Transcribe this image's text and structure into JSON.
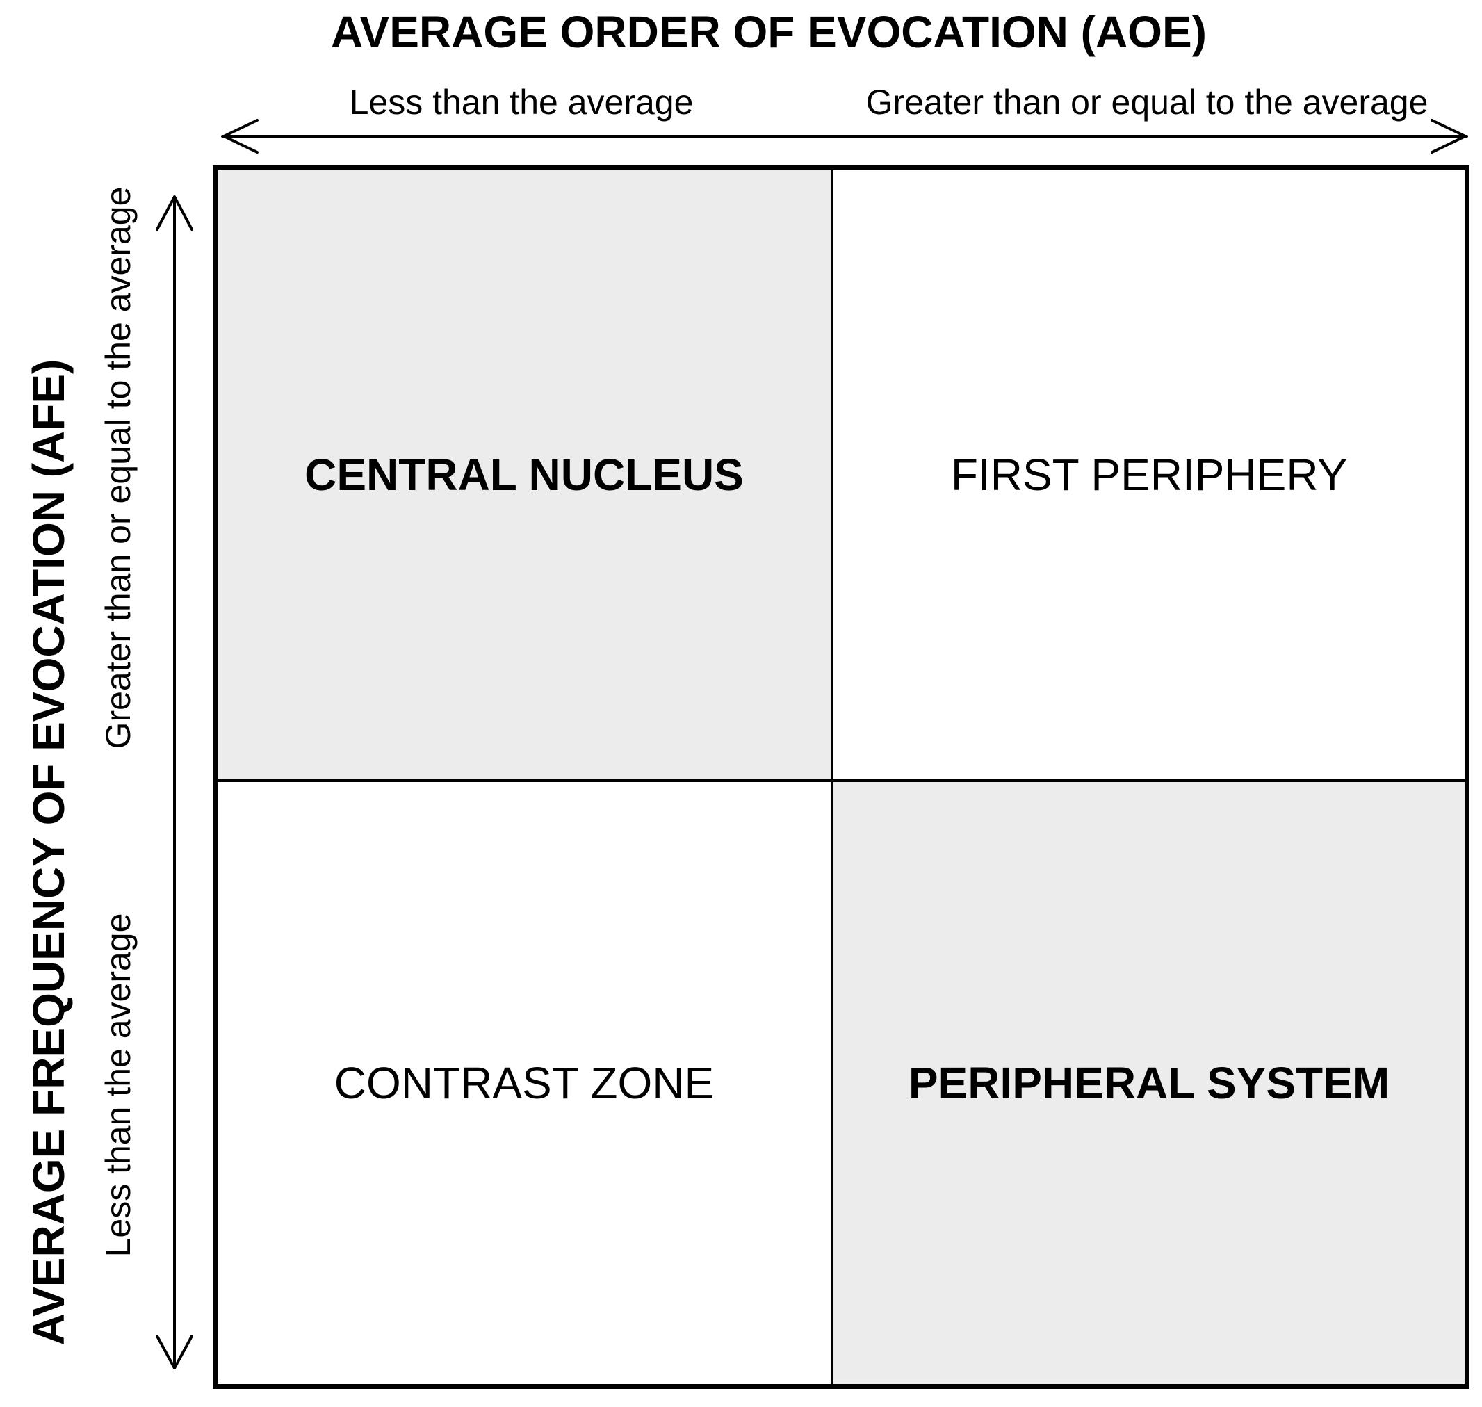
{
  "x_axis": {
    "title": "AVERAGE ORDER OF EVOCATION (AOE)",
    "low_label": "Less than the average",
    "high_label": "Greater than or equal to the average"
  },
  "y_axis": {
    "title": "AVERAGE FREQUENCY OF EVOCATION (AFE)",
    "high_label": "Greater than or equal to the average",
    "low_label": "Less than the average"
  },
  "quadrants": {
    "top_left": "CENTRAL NUCLEUS",
    "top_right": "FIRST PERIPHERY",
    "bottom_left": "CONTRAST ZONE",
    "bottom_right": "PERIPHERAL SYSTEM"
  },
  "colors": {
    "shaded": "#ececec",
    "border": "#000000"
  }
}
